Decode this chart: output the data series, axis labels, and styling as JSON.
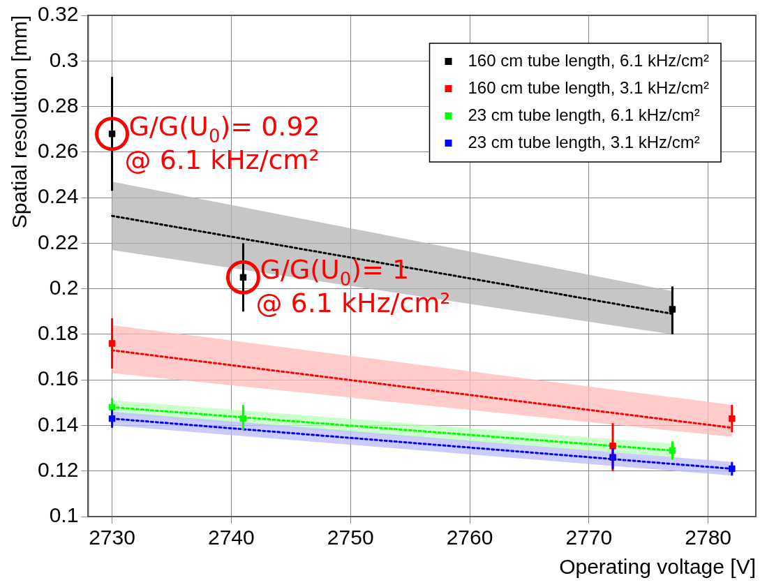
{
  "chart_data": {
    "type": "scatter",
    "xlabel": "Operating voltage [V]",
    "ylabel": "Spatial resolution [mm]",
    "xlim": [
      2728,
      2784
    ],
    "xticks": [
      2730,
      2740,
      2750,
      2760,
      2770,
      2780
    ],
    "ylim": [
      0.1,
      0.32
    ],
    "yticks": [
      0.1,
      0.12,
      0.14,
      0.16,
      0.18,
      0.2,
      0.22,
      0.24,
      0.26,
      0.28,
      0.3,
      0.32
    ],
    "grid": true,
    "legend": "top right",
    "series": [
      {
        "name": "160 cm tube length, 6.1 kHz/cm²",
        "color": "#000000",
        "marker": "square",
        "x": [
          2730,
          2741,
          2777
        ],
        "values": [
          0.268,
          0.205,
          0.191
        ],
        "errors": [
          [
            0.243,
            0.293
          ],
          [
            0.19,
            0.22
          ],
          [
            0.18,
            0.201
          ]
        ]
      },
      {
        "name": "160 cm tube length, 3.1 kHz/cm²",
        "color": "#ff0000",
        "marker": "square",
        "x": [
          2730,
          2772,
          2782
        ],
        "values": [
          0.176,
          0.131,
          0.143
        ],
        "errors": [
          [
            0.165,
            0.187
          ],
          [
            0.12,
            0.141
          ],
          [
            0.137,
            0.149
          ]
        ]
      },
      {
        "name": "23 cm tube length, 6.1 kHz/cm²",
        "color": "#00ff00",
        "marker": "square",
        "x": [
          2730,
          2741,
          2777
        ],
        "values": [
          0.148,
          0.143,
          0.129
        ],
        "errors": [
          [
            0.145,
            0.152
          ],
          [
            0.138,
            0.149
          ],
          [
            0.125,
            0.133
          ]
        ]
      },
      {
        "name": "23 cm tube length, 3.1 kHz/cm²",
        "color": "#0000ff",
        "marker": "square",
        "x": [
          2730,
          2772,
          2782
        ],
        "values": [
          0.143,
          0.126,
          0.121
        ],
        "errors": [
          [
            0.139,
            0.147
          ],
          [
            0.121,
            0.13
          ],
          [
            0.118,
            0.124
          ]
        ]
      },
      {
        "type": "line",
        "color": "#000000",
        "x": [
          2730,
          2777
        ],
        "values": [
          0.232,
          0.189
        ],
        "lower": [
          0.217,
          0.18
        ],
        "upper": [
          0.247,
          0.199
        ],
        "line_style": "dotted"
      },
      {
        "type": "line",
        "color": "#ff0000",
        "x": [
          2730,
          2782
        ],
        "values": [
          0.173,
          0.139
        ],
        "lower": [
          0.163,
          0.135
        ],
        "upper": [
          0.184,
          0.149
        ],
        "line_style": "dotted"
      },
      {
        "type": "line",
        "color": "#00ff00",
        "x": [
          2730,
          2777
        ],
        "values": [
          0.148,
          0.129
        ],
        "lower": [
          0.145,
          0.126
        ],
        "upper": [
          0.151,
          0.132
        ],
        "line_style": "dotted"
      },
      {
        "type": "line",
        "color": "#0000ff",
        "x": [
          2730,
          2782
        ],
        "values": [
          0.143,
          0.121
        ],
        "lower": [
          0.14,
          0.118
        ],
        "upper": [
          0.146,
          0.124
        ],
        "line_style": "dotted"
      }
    ],
    "annotations": [
      {
        "text": "G/G(U$_{0}$)= 0.92\n@ 6.1 kHz/cm²",
        "x": 2730,
        "y": 0.268
      },
      {
        "text": "G/G(U$_{0}$)= 1\n@ 6.1 kHz/cm²",
        "x": 2741,
        "y": 0.205
      }
    ]
  }
}
